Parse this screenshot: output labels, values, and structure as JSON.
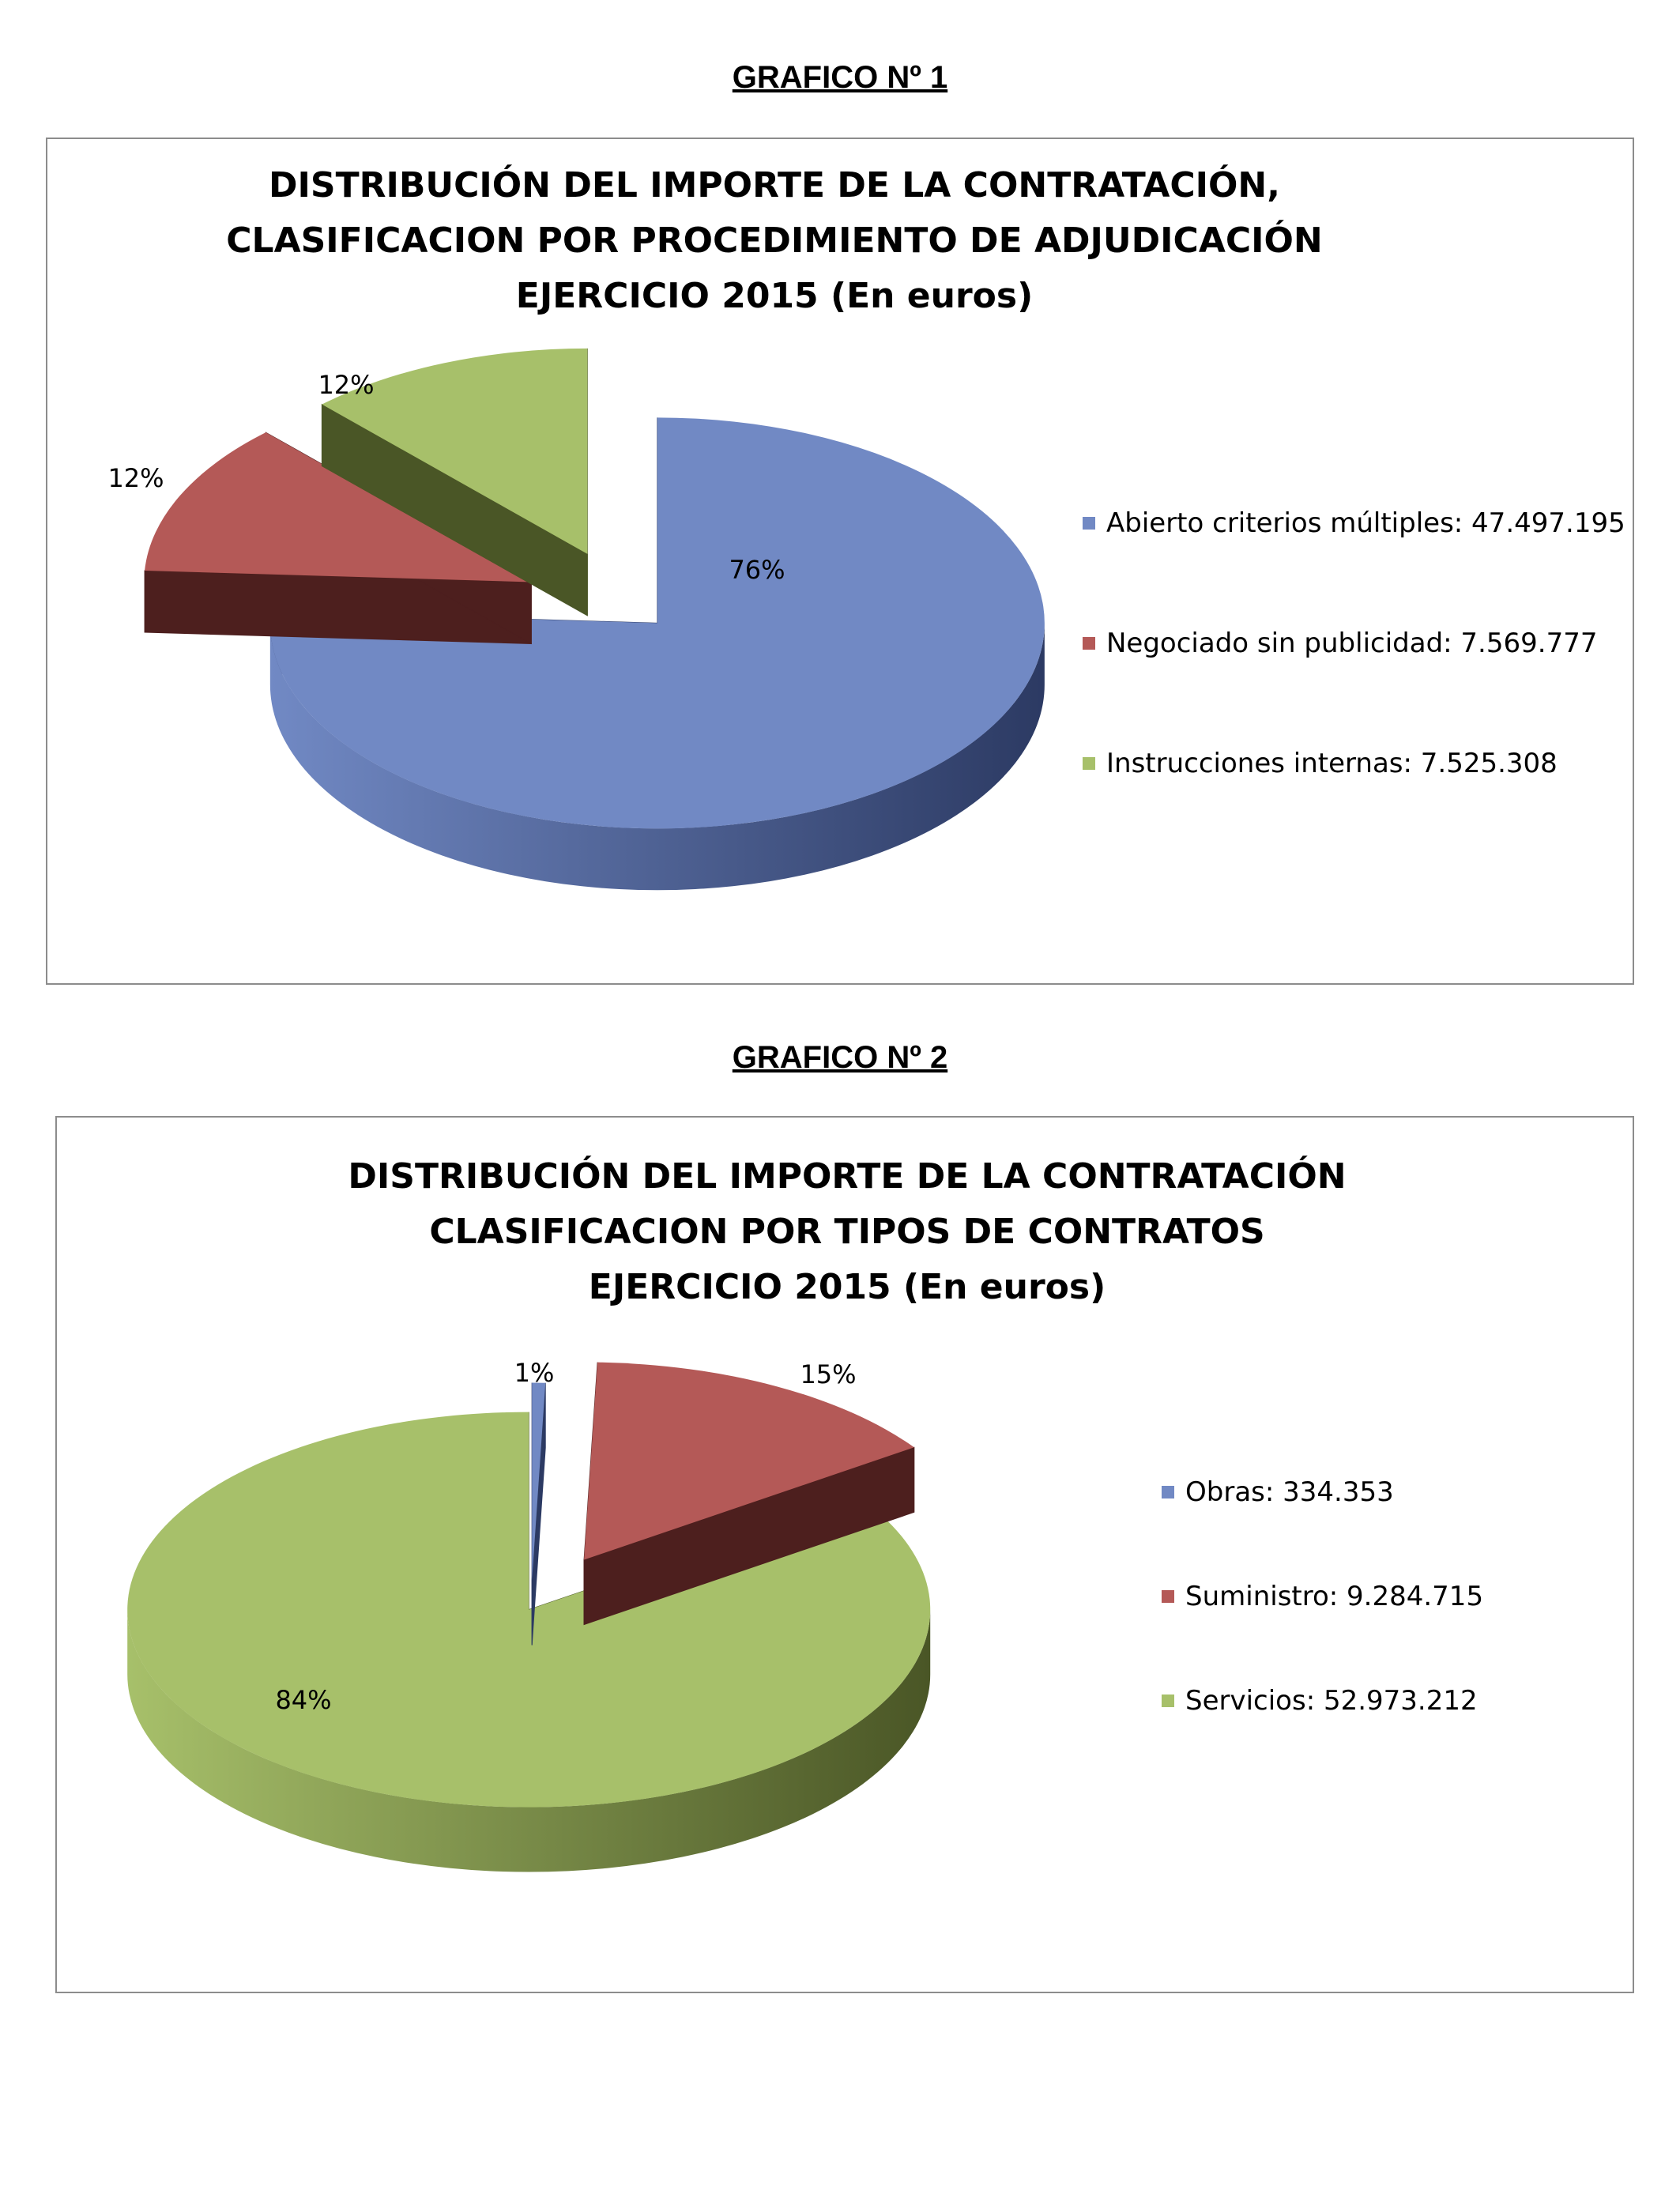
{
  "chart1": {
    "heading": "GRAFICO Nº 1",
    "title_lines": [
      "DISTRIBUCIÓN DEL IMPORTE DE LA CONTRATACIÓN,",
      "CLASIFICACION POR PROCEDIMIENTO DE ADJUDICACIÓN",
      "EJERCICIO 2015 (En euros)"
    ],
    "legend": [
      "Abierto criterios múltiples: 47.497.195",
      "Negociado sin publicidad: 7.569.777",
      "Instrucciones internas: 7.525.308"
    ],
    "labels": [
      "76%",
      "12%",
      "12%"
    ]
  },
  "chart2": {
    "heading": "GRAFICO Nº 2",
    "title_lines": [
      "DISTRIBUCIÓN DEL IMPORTE DE LA CONTRATACIÓN",
      "CLASIFICACION POR TIPOS DE CONTRATOS",
      "EJERCICIO 2015 (En euros)"
    ],
    "legend": [
      "Obras: 334.353",
      "Suministro: 9.284.715",
      "Servicios: 52.973.212"
    ],
    "labels": [
      "1%",
      "15%",
      "84%"
    ]
  },
  "chart_data": [
    {
      "type": "pie",
      "title": "DISTRIBUCIÓN DEL IMPORTE DE LA CONTRATACIÓN, CLASIFICACION POR PROCEDIMIENTO DE ADJUDICACIÓN EJERCICIO 2015 (En euros)",
      "categories": [
        "Abierto criterios múltiples",
        "Negociado sin publicidad",
        "Instrucciones internas"
      ],
      "values": [
        47497195,
        7569777,
        7525308
      ],
      "percent_labels": [
        "76%",
        "12%",
        "12%"
      ],
      "colors": [
        "#7189c4",
        "#b45957",
        "#a7c06a"
      ],
      "side_colors": [
        "#2c3a63",
        "#4d1f1e",
        "#4a5626"
      ],
      "style": "3d-exploded",
      "legend_position": "right"
    },
    {
      "type": "pie",
      "title": "DISTRIBUCIÓN DEL IMPORTE DE LA CONTRATACIÓN CLASIFICACION POR TIPOS DE CONTRATOS EJERCICIO 2015 (En euros)",
      "categories": [
        "Obras",
        "Suministro",
        "Servicios"
      ],
      "values": [
        334353,
        9284715,
        52973212
      ],
      "percent_labels": [
        "1%",
        "15%",
        "84%"
      ],
      "colors": [
        "#7189c4",
        "#b45957",
        "#a7c06a"
      ],
      "side_colors": [
        "#2c3a63",
        "#4d1f1e",
        "#4a5626"
      ],
      "style": "3d-exploded",
      "legend_position": "right"
    }
  ]
}
